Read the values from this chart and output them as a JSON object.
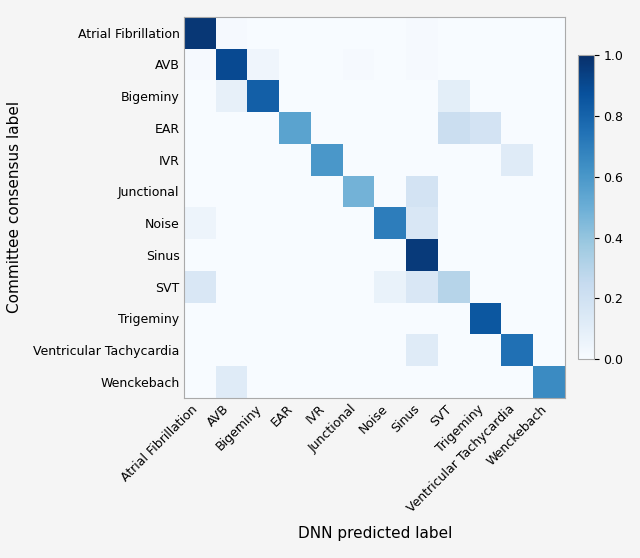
{
  "labels": [
    "Atrial Fibrillation",
    "AVB",
    "Bigeminy",
    "EAR",
    "IVR",
    "Junctional",
    "Noise",
    "Sinus",
    "SVT",
    "Trigeminy",
    "Ventricular Tachycardia",
    "Wenckebach"
  ],
  "matrix": [
    [
      0.97,
      0.01,
      0.0,
      0.0,
      0.0,
      0.0,
      0.0,
      0.01,
      0.0,
      0.0,
      0.0,
      0.0
    ],
    [
      0.01,
      0.9,
      0.04,
      0.0,
      0.0,
      0.01,
      0.0,
      0.01,
      0.0,
      0.0,
      0.0,
      0.0
    ],
    [
      0.0,
      0.08,
      0.82,
      0.0,
      0.0,
      0.0,
      0.0,
      0.0,
      0.1,
      0.0,
      0.0,
      0.0
    ],
    [
      0.0,
      0.0,
      0.0,
      0.55,
      0.0,
      0.0,
      0.0,
      0.0,
      0.22,
      0.18,
      0.0,
      0.0
    ],
    [
      0.0,
      0.0,
      0.0,
      0.0,
      0.6,
      0.0,
      0.0,
      0.0,
      0.0,
      0.0,
      0.12,
      0.0
    ],
    [
      0.0,
      0.0,
      0.0,
      0.0,
      0.0,
      0.48,
      0.0,
      0.18,
      0.0,
      0.0,
      0.0,
      0.0
    ],
    [
      0.05,
      0.0,
      0.0,
      0.0,
      0.0,
      0.0,
      0.7,
      0.15,
      0.0,
      0.0,
      0.0,
      0.0
    ],
    [
      0.0,
      0.0,
      0.0,
      0.0,
      0.0,
      0.0,
      0.0,
      0.96,
      0.0,
      0.0,
      0.0,
      0.0
    ],
    [
      0.15,
      0.0,
      0.0,
      0.0,
      0.0,
      0.0,
      0.07,
      0.15,
      0.3,
      0.0,
      0.0,
      0.0
    ],
    [
      0.0,
      0.0,
      0.0,
      0.0,
      0.0,
      0.0,
      0.0,
      0.0,
      0.0,
      0.85,
      0.0,
      0.0
    ],
    [
      0.0,
      0.0,
      0.0,
      0.0,
      0.0,
      0.0,
      0.0,
      0.12,
      0.0,
      0.0,
      0.75,
      0.0
    ],
    [
      0.0,
      0.12,
      0.0,
      0.0,
      0.0,
      0.0,
      0.0,
      0.0,
      0.0,
      0.0,
      0.0,
      0.65
    ]
  ],
  "xlabel": "DNN predicted label",
  "ylabel": "Committee consensus label",
  "cmap": "Blues",
  "vmin": 0.0,
  "vmax": 1.0,
  "colorbar_ticks": [
    0.0,
    0.2,
    0.4,
    0.6,
    0.8,
    1.0
  ],
  "figsize": [
    6.4,
    5.58
  ],
  "dpi": 100,
  "tick_fontsize": 9,
  "label_fontsize": 11,
  "bg_color": "#f5f5f5"
}
